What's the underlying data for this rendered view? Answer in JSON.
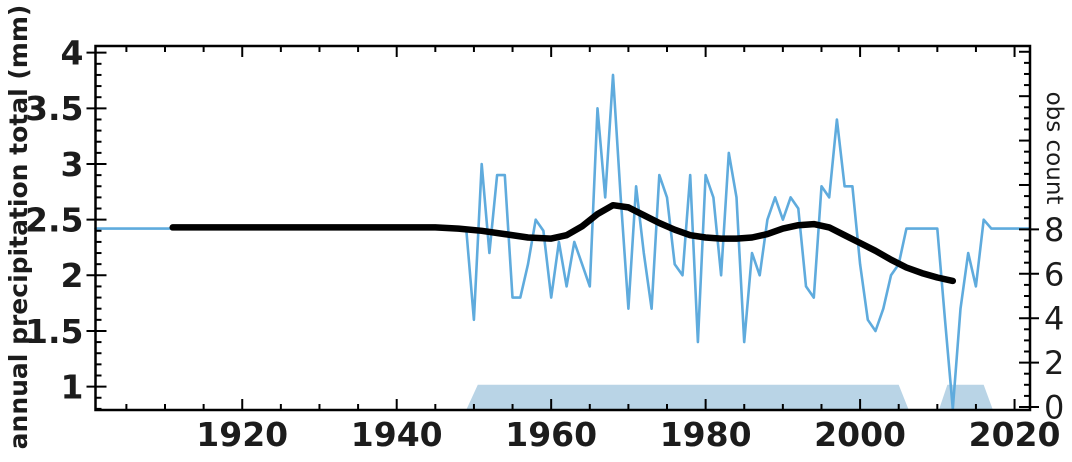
{
  "figure": {
    "ylabel_left": "annual precipitation total (mm)",
    "ylabel_right": "obs count"
  },
  "chart_data": {
    "type": "line",
    "title": "",
    "xlabel": "",
    "ylabel_left": "annual precipitation total (mm)",
    "ylabel_right": "obs count",
    "xlim": [
      1901,
      2022
    ],
    "ylim_left": [
      0.79,
      4.06
    ],
    "ylim_right": [
      -0.135,
      16.26
    ],
    "grid": false,
    "legend": "none",
    "axes": {
      "x": {
        "major": [
          1920,
          1940,
          1960,
          1980,
          2000,
          2020
        ],
        "labels": [
          "1920",
          "1940",
          "1960",
          "1980",
          "2000",
          "2020"
        ],
        "minor_step": 5
      },
      "left": {
        "major": [
          1,
          1.5,
          2,
          2.5,
          3,
          3.5,
          4
        ],
        "labels": [
          "1",
          "1.5",
          "2",
          "2.5",
          "3",
          "3.5",
          "4"
        ],
        "minor_step": 0.1
      },
      "right": {
        "major": [
          0,
          2,
          4,
          6,
          8,
          10,
          12,
          14,
          16
        ],
        "labeled": [
          0,
          2,
          4,
          6,
          8
        ],
        "minor_step": 0.5
      }
    },
    "colors": {
      "annual_line": "#5fabdd",
      "smooth_line": "#000000",
      "obs_fill": "#b9d4e6",
      "axis": "#000000",
      "text": "#1c1c1c"
    },
    "series": [
      {
        "name": "annual-precipitation",
        "type": "line",
        "axis": "left",
        "color": "#5fabdd",
        "width": 2.6,
        "points": [
          [
            1901,
            2.42
          ],
          [
            1949,
            2.42
          ],
          [
            1950,
            1.6
          ],
          [
            1951,
            3.0
          ],
          [
            1952,
            2.2
          ],
          [
            1953,
            2.9
          ],
          [
            1954,
            2.9
          ],
          [
            1955,
            1.8
          ],
          [
            1956,
            1.8
          ],
          [
            1957,
            2.1
          ],
          [
            1958,
            2.5
          ],
          [
            1959,
            2.4
          ],
          [
            1960,
            1.8
          ],
          [
            1961,
            2.3
          ],
          [
            1962,
            1.9
          ],
          [
            1963,
            2.3
          ],
          [
            1964,
            2.1
          ],
          [
            1965,
            1.9
          ],
          [
            1966,
            3.5
          ],
          [
            1967,
            2.7
          ],
          [
            1968,
            3.8
          ],
          [
            1969,
            2.7
          ],
          [
            1970,
            1.7
          ],
          [
            1971,
            2.8
          ],
          [
            1972,
            2.2
          ],
          [
            1973,
            1.7
          ],
          [
            1974,
            2.9
          ],
          [
            1975,
            2.7
          ],
          [
            1976,
            2.1
          ],
          [
            1977,
            2.0
          ],
          [
            1978,
            2.9
          ],
          [
            1979,
            1.4
          ],
          [
            1980,
            2.9
          ],
          [
            1981,
            2.7
          ],
          [
            1982,
            2.0
          ],
          [
            1983,
            3.1
          ],
          [
            1984,
            2.7
          ],
          [
            1985,
            1.4
          ],
          [
            1986,
            2.2
          ],
          [
            1987,
            2.0
          ],
          [
            1988,
            2.5
          ],
          [
            1989,
            2.7
          ],
          [
            1990,
            2.5
          ],
          [
            1991,
            2.7
          ],
          [
            1992,
            2.6
          ],
          [
            1993,
            1.9
          ],
          [
            1994,
            1.8
          ],
          [
            1995,
            2.8
          ],
          [
            1996,
            2.7
          ],
          [
            1997,
            3.4
          ],
          [
            1998,
            2.8
          ],
          [
            1999,
            2.8
          ],
          [
            2000,
            2.1
          ],
          [
            2001,
            1.6
          ],
          [
            2002,
            1.5
          ],
          [
            2003,
            1.7
          ],
          [
            2004,
            2.0
          ],
          [
            2005,
            2.1
          ],
          [
            2006,
            2.42
          ],
          [
            2010,
            2.42
          ],
          [
            2011,
            1.6
          ],
          [
            2012,
            0.8
          ],
          [
            2013,
            1.7
          ],
          [
            2014,
            2.2
          ],
          [
            2015,
            1.9
          ],
          [
            2016,
            2.5
          ],
          [
            2017,
            2.42
          ],
          [
            2022,
            2.42
          ]
        ]
      },
      {
        "name": "smoothed-trend",
        "type": "line",
        "axis": "left",
        "color": "#000000",
        "width": 6.5,
        "points": [
          [
            1911,
            2.43
          ],
          [
            1920,
            2.43
          ],
          [
            1930,
            2.43
          ],
          [
            1940,
            2.43
          ],
          [
            1945,
            2.43
          ],
          [
            1948,
            2.42
          ],
          [
            1951,
            2.4
          ],
          [
            1954,
            2.37
          ],
          [
            1957,
            2.34
          ],
          [
            1960,
            2.33
          ],
          [
            1962,
            2.36
          ],
          [
            1964,
            2.44
          ],
          [
            1966,
            2.55
          ],
          [
            1968,
            2.63
          ],
          [
            1970,
            2.61
          ],
          [
            1972,
            2.54
          ],
          [
            1974,
            2.47
          ],
          [
            1976,
            2.41
          ],
          [
            1978,
            2.36
          ],
          [
            1980,
            2.34
          ],
          [
            1982,
            2.33
          ],
          [
            1984,
            2.33
          ],
          [
            1986,
            2.34
          ],
          [
            1988,
            2.37
          ],
          [
            1990,
            2.42
          ],
          [
            1992,
            2.45
          ],
          [
            1994,
            2.46
          ],
          [
            1996,
            2.43
          ],
          [
            1998,
            2.36
          ],
          [
            2000,
            2.29
          ],
          [
            2002,
            2.22
          ],
          [
            2004,
            2.14
          ],
          [
            2006,
            2.07
          ],
          [
            2008,
            2.02
          ],
          [
            2010,
            1.98
          ],
          [
            2012,
            1.95
          ]
        ]
      },
      {
        "name": "obs-count",
        "type": "area",
        "axis": "right",
        "color": "#b9d4e6",
        "segments": [
          [
            [
              1949,
              0
            ],
            [
              1950.5,
              1
            ],
            [
              2005,
              1
            ],
            [
              2006.3,
              0
            ]
          ],
          [
            [
              2010.2,
              0
            ],
            [
              2011.3,
              1
            ],
            [
              2016,
              1
            ],
            [
              2017.2,
              0
            ]
          ]
        ]
      }
    ]
  }
}
